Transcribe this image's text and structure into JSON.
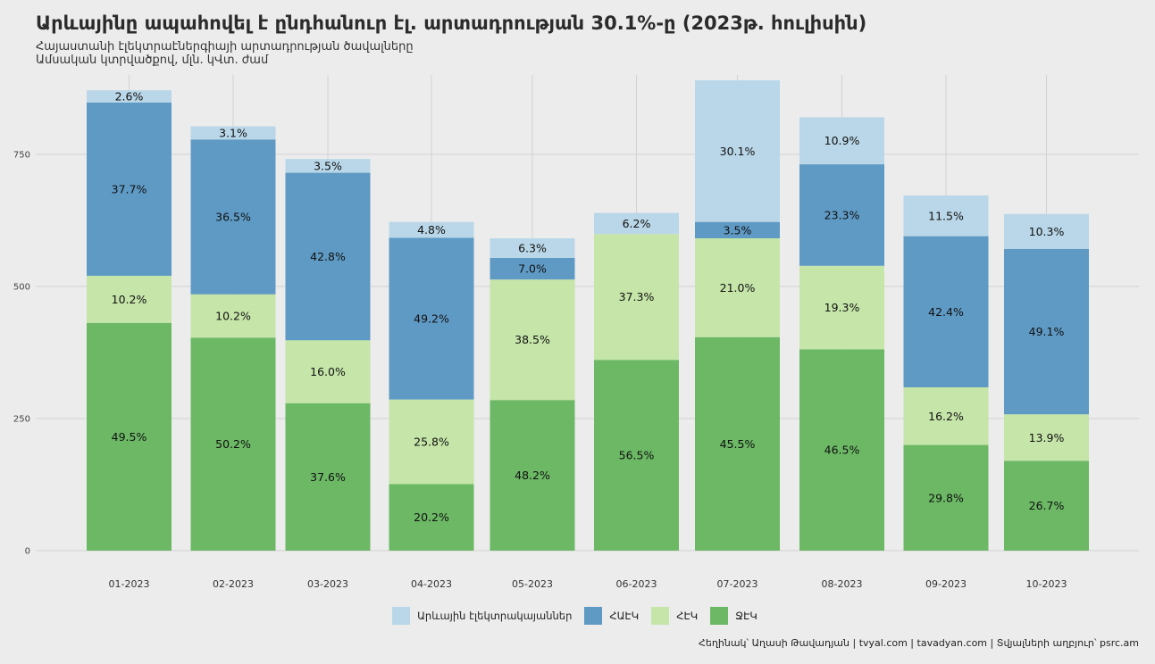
{
  "title": "Արևայինը ապահովել է ընդհանուր էլ. արտադրության 30.1%-ը (2023թ. հուլիսին)",
  "subtitle_line1": "Հայաստանի էլեկտրաէներգիայի արտադրության ծավալները",
  "subtitle_line2": "Ամսական կտրվածքով, մլն. կՎտ. ժամ",
  "caption": "Հեղինակ՝ Աղասի Թավադյան   |   tvyal.com   |   tavadyan.com    |   Տվյալների աղբյուր՝ psrc.am",
  "chart_data": {
    "type": "bar",
    "stacked": true,
    "categories": [
      "01-2023",
      "02-2023",
      "03-2023",
      "04-2023",
      "05-2023",
      "06-2023",
      "07-2023",
      "08-2023",
      "09-2023",
      "10-2023"
    ],
    "ylim": [
      0,
      900
    ],
    "yticks": [
      0,
      250,
      500,
      750
    ],
    "grid": true,
    "legend_position": "bottom",
    "series": [
      {
        "name": "ՋԷԿ",
        "color": "#6cb865",
        "values": [
          431,
          403,
          279,
          126,
          285,
          361,
          404,
          381,
          200,
          170
        ],
        "labels": [
          "49.5%",
          "50.2%",
          "37.6%",
          "20.2%",
          "48.2%",
          "56.5%",
          "45.5%",
          "46.5%",
          "29.8%",
          "26.7%"
        ]
      },
      {
        "name": "ՀԷԿ",
        "color": "#c5e5a9",
        "values": [
          89,
          82,
          119,
          160,
          228,
          238,
          187,
          158,
          109,
          88
        ],
        "labels": [
          "10.2%",
          "10.2%",
          "16.0%",
          "25.8%",
          "38.5%",
          "37.3%",
          "21.0%",
          "19.3%",
          "16.2%",
          "13.9%"
        ]
      },
      {
        "name": "ՀԱԷԿ",
        "color": "#5f9ac5",
        "values": [
          328,
          293,
          317,
          306,
          41,
          0,
          31,
          192,
          286,
          313
        ],
        "labels": [
          "37.7%",
          "36.5%",
          "42.8%",
          "49.2%",
          "7.0%",
          "",
          "3.5%",
          "23.3%",
          "42.4%",
          "49.1%"
        ]
      },
      {
        "name": "Արևային էլեկտրակայաններ",
        "color": "#b9d7e8",
        "values": [
          23,
          25,
          26,
          30,
          37,
          40,
          268,
          89,
          77,
          66
        ],
        "labels": [
          "2.6%",
          "3.1%",
          "3.5%",
          "4.8%",
          "6.3%",
          "6.2%",
          "30.1%",
          "10.9%",
          "11.5%",
          "10.3%"
        ]
      }
    ],
    "legend_order": [
      "Արևային էլեկտրակայաններ",
      "ՀԱԷԿ",
      "ՀԷԿ",
      "ՋԷԿ"
    ]
  }
}
